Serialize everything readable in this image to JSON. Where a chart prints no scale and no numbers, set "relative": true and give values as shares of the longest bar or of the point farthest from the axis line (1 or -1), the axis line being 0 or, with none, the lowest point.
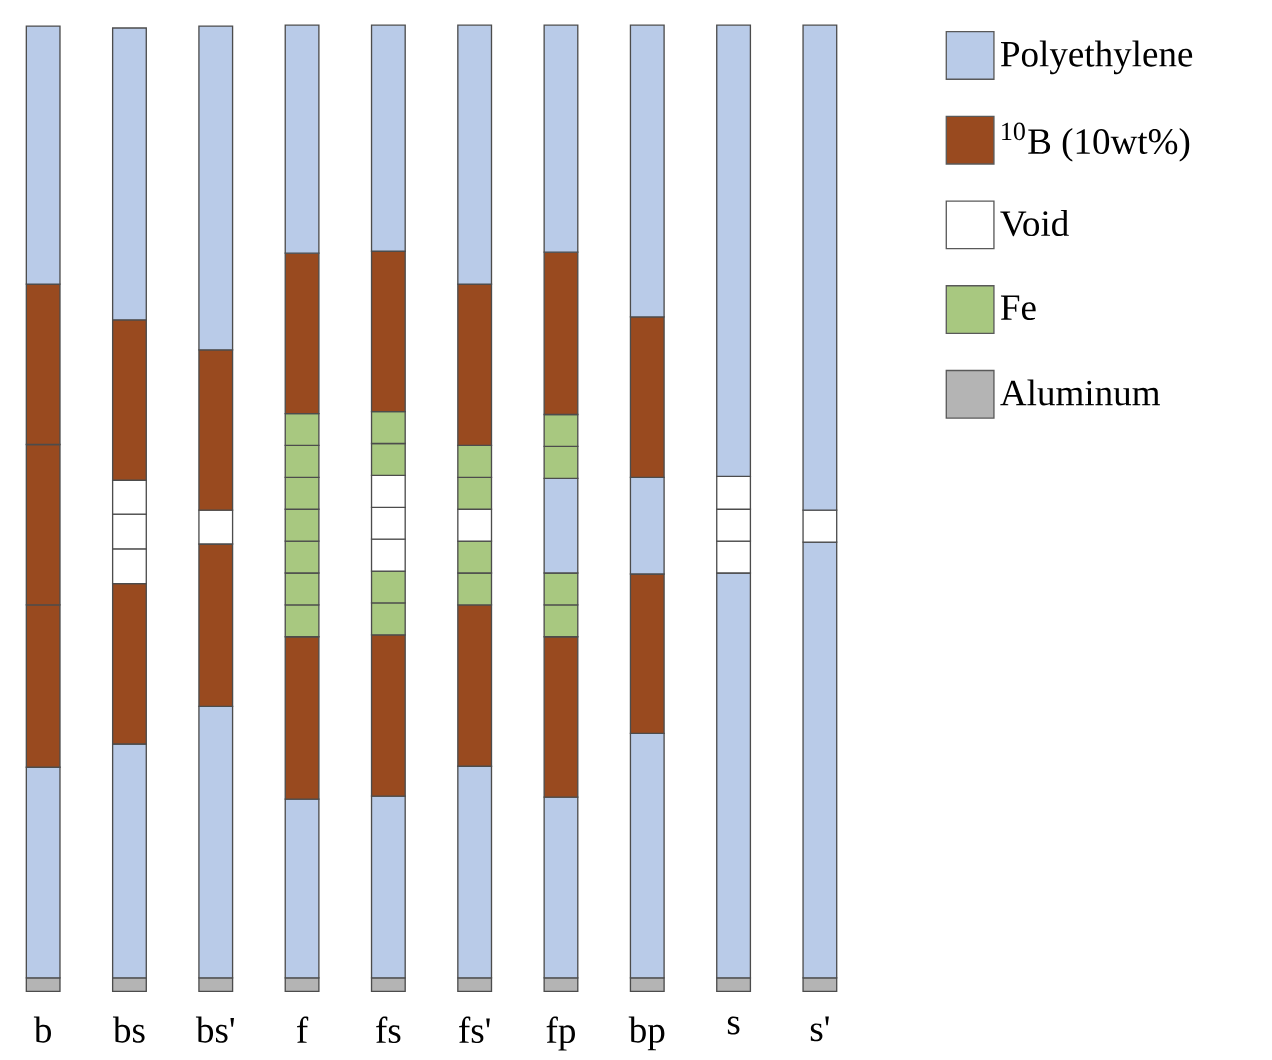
{
  "chart_data": {
    "type": "bar",
    "stacked": true,
    "relative": true,
    "legend": "top right",
    "tick_labels": "x",
    "categories": [
      "b",
      "bs",
      "bs'",
      "f",
      "fs",
      "fs'",
      "fp",
      "bp",
      "s",
      "s'"
    ],
    "series": [
      {
        "name": "Aluminum",
        "color": "#b4b4b4",
        "values": [
          0.014,
          0.014,
          0.014,
          0.014,
          0.014,
          0.014,
          0.014,
          0.014,
          0.014,
          0.014
        ]
      },
      {
        "color": "#b9cbe8",
        "values": [
          0.218,
          0.242,
          0.281,
          0.185,
          0.188,
          0.219,
          0.187,
          0.253,
          0.419,
          0.451
        ]
      },
      {
        "color": "#994a1f",
        "values": [
          0.168,
          0.166,
          0.168,
          0.168,
          0.167,
          0.167,
          0.166,
          0.165,
          null,
          null
        ]
      },
      {
        "name": "Fe",
        "color": "#a8c880",
        "values": [
          null,
          null,
          null,
          0.033,
          0.033,
          0.033,
          0.033,
          null,
          null,
          null
        ]
      },
      {
        "color": "#a8c880",
        "values": [
          null,
          null,
          null,
          0.033,
          0.033,
          0.033,
          0.033,
          null,
          null,
          null
        ]
      },
      {
        "color": "#a8c880",
        "values": [
          null,
          null,
          null,
          0.033,
          null,
          null,
          null,
          null,
          null,
          null
        ]
      },
      {
        "color": "#994a1f",
        "values": [
          0.166,
          null,
          null,
          null,
          null,
          null,
          null,
          null,
          null,
          null
        ]
      },
      {
        "color": "#b9cbe8",
        "values": [
          null,
          null,
          null,
          null,
          null,
          null,
          0.098,
          0.1,
          null,
          null
        ]
      },
      {
        "name": "Void",
        "color": "#ffffff",
        "values": [
          null,
          0.036,
          0.035,
          null,
          0.033,
          0.033,
          null,
          null,
          0.033,
          0.033
        ]
      },
      {
        "color": "#ffffff",
        "values": [
          null,
          0.036,
          null,
          null,
          0.033,
          null,
          null,
          null,
          0.033,
          null
        ]
      },
      {
        "color": "#ffffff",
        "values": [
          null,
          0.035,
          null,
          null,
          0.033,
          null,
          null,
          null,
          0.034,
          null
        ]
      },
      {
        "color": "#a8c880",
        "values": [
          null,
          null,
          null,
          0.033,
          null,
          null,
          null,
          null,
          null,
          null
        ]
      },
      {
        "color": "#a8c880",
        "values": [
          null,
          null,
          null,
          0.033,
          0.033,
          0.033,
          0.033,
          null,
          null,
          null
        ]
      },
      {
        "color": "#a8c880",
        "values": [
          null,
          null,
          null,
          0.033,
          0.033,
          0.033,
          0.033,
          null,
          null,
          null
        ]
      },
      {
        "color": "#a8c880",
        "values": [
          null,
          null,
          null,
          0.033,
          null,
          null,
          null,
          null,
          null,
          null
        ]
      },
      {
        "name": "$^{10}$B (10wt%)",
        "color": "#994a1f",
        "values": [
          0.166,
          0.166,
          0.166,
          0.166,
          0.166,
          0.167,
          0.168,
          0.166,
          null,
          null
        ]
      },
      {
        "name": "Polyethylene",
        "color": "#b9cbe8",
        "values": [
          0.267,
          0.302,
          0.335,
          0.236,
          0.234,
          0.268,
          0.235,
          0.302,
          0.467,
          0.502
        ]
      }
    ]
  }
}
